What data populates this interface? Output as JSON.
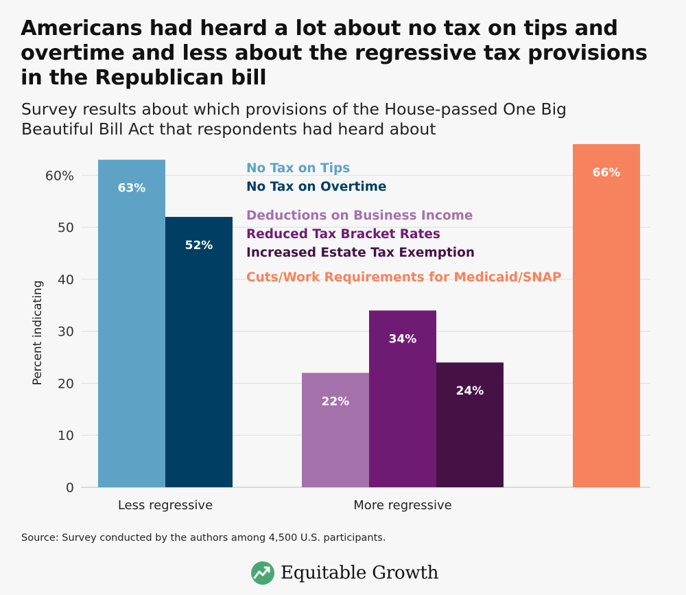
{
  "header": {
    "title": "Americans had heard a lot about no tax on tips and overtime and less about the regressive tax provisions in the Republican bill",
    "subtitle": "Survey results about which provisions of the House-passed One Big Beautiful Bill Act that respondents had heard about"
  },
  "chart_data": {
    "type": "bar",
    "ylabel": "Percent indicating",
    "ylim": [
      0,
      66
    ],
    "yticks": [
      {
        "value": 0,
        "label": "0"
      },
      {
        "value": 10,
        "label": "10"
      },
      {
        "value": 20,
        "label": "20"
      },
      {
        "value": 30,
        "label": "30"
      },
      {
        "value": 40,
        "label": "40"
      },
      {
        "value": 50,
        "label": "50"
      },
      {
        "value": 60,
        "label": "60%"
      }
    ],
    "grid": true,
    "groups": [
      {
        "label": "Less regressive",
        "bars": [
          "No Tax on Tips",
          "No Tax on Overtime"
        ]
      },
      {
        "label": "More regressive",
        "bars": [
          "Deductions on Business Income",
          "Reduced Tax Bracket Rates",
          "Increased Estate Tax Exemption"
        ]
      },
      {
        "label": "",
        "bars": [
          "Cuts/Work Requirements for Medicaid/SNAP"
        ]
      }
    ],
    "series": [
      {
        "name": "No Tax on Tips",
        "value": 63,
        "label": "63%",
        "color": "#5ea3c6"
      },
      {
        "name": "No Tax on Overtime",
        "value": 52,
        "label": "52%",
        "color": "#003f63"
      },
      {
        "name": "Deductions on Business Income",
        "value": 22,
        "label": "22%",
        "color": "#a471ab"
      },
      {
        "name": "Reduced Tax Bracket Rates",
        "value": 34,
        "label": "34%",
        "color": "#701b73"
      },
      {
        "name": "Increased Estate Tax Exemption",
        "value": 24,
        "label": "24%",
        "color": "#461246"
      },
      {
        "name": "Cuts/Work Requirements for Medicaid/SNAP",
        "value": 66,
        "label": "66%",
        "color": "#f6835d"
      }
    ],
    "legend": [
      "No Tax on Tips",
      "No Tax on Overtime",
      "Deductions on Business Income",
      "Reduced Tax Bracket Rates",
      "Increased Estate Tax Exemption",
      "Cuts/Work Requirements for Medicaid/SNAP"
    ],
    "legend_position": "top-center"
  },
  "footer": {
    "source": "Source: Survey conducted by the authors among 4,500 U.S. participants.",
    "logo_text": "Equitable Growth"
  }
}
